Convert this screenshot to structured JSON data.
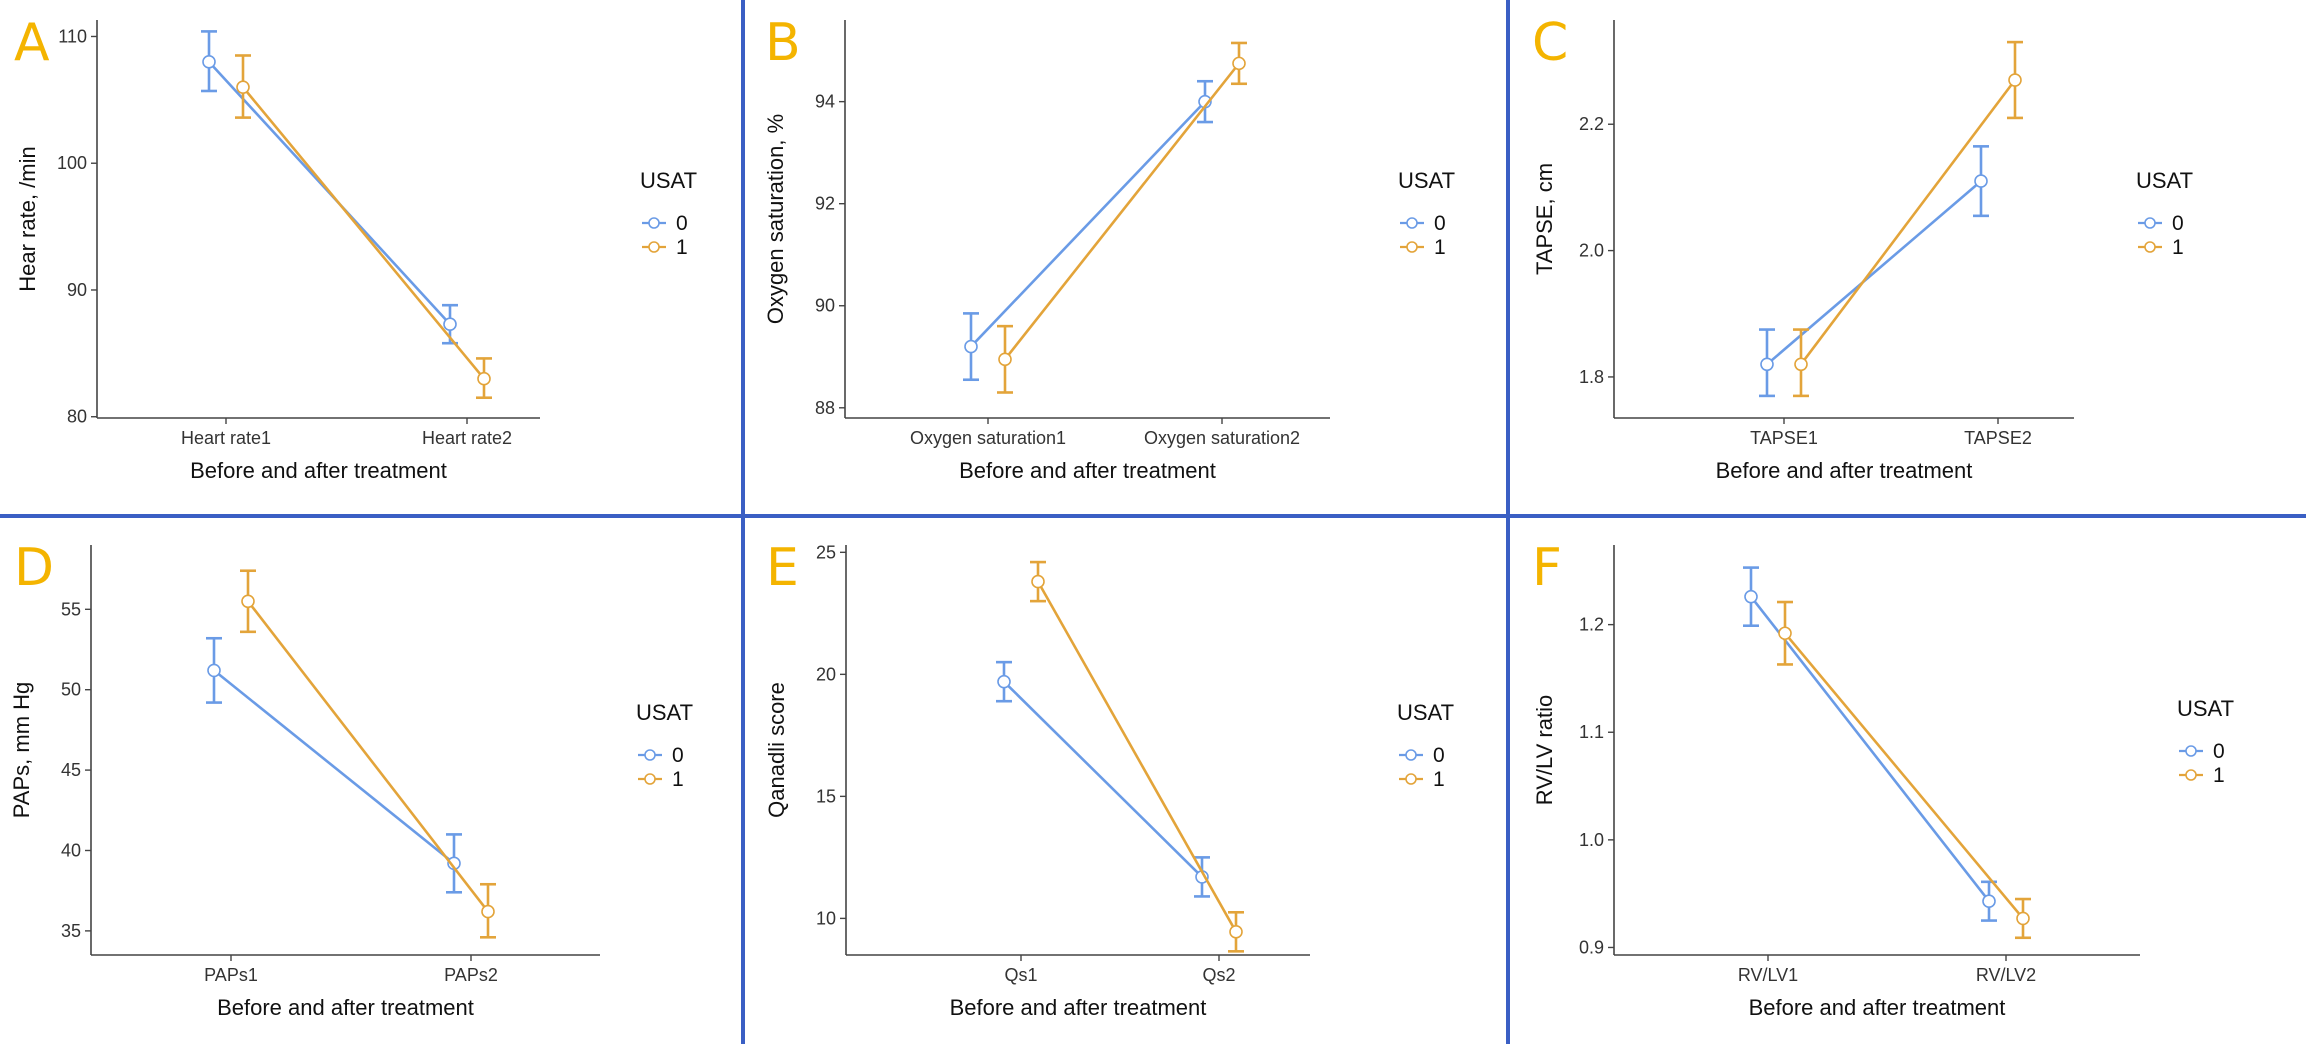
{
  "colors": {
    "group0": "#6a9be6",
    "group1": "#e3a43a",
    "divider": "#3a5fc4",
    "panel_letter": "#f4b400"
  },
  "chart_data": [
    {
      "type": "line",
      "panel": "A",
      "categories": [
        "Heart rate1",
        "Heart rate2"
      ],
      "xlabel": "Before and after treatment",
      "ylabel": "Hear rate, /min",
      "ylim": [
        79.9,
        111.3
      ],
      "yticks": [
        80,
        90,
        100,
        110
      ],
      "legend": {
        "title": "USAT",
        "entries": [
          "0",
          "1"
        ]
      },
      "series": [
        {
          "name": "0",
          "values": [
            108.0,
            87.3
          ],
          "err_low": [
            105.7,
            85.8
          ],
          "err_high": [
            110.4,
            88.8
          ]
        },
        {
          "name": "1",
          "values": [
            106.0,
            83.0
          ],
          "err_low": [
            103.6,
            81.5
          ],
          "err_high": [
            108.5,
            84.6
          ]
        }
      ]
    },
    {
      "type": "line",
      "panel": "B",
      "categories": [
        "Oxygen saturation1",
        "Oxygen saturation2"
      ],
      "xlabel": "Before and after treatment",
      "ylabel": "Oxygen saturation, %",
      "ylim": [
        87.8,
        95.6
      ],
      "yticks": [
        88,
        90,
        92,
        94
      ],
      "legend": {
        "title": "USAT",
        "entries": [
          "0",
          "1"
        ]
      },
      "series": [
        {
          "name": "0",
          "values": [
            89.2,
            94.0
          ],
          "err_low": [
            88.55,
            93.6
          ],
          "err_high": [
            89.85,
            94.4
          ]
        },
        {
          "name": "1",
          "values": [
            88.95,
            94.75
          ],
          "err_low": [
            88.3,
            94.35
          ],
          "err_high": [
            89.6,
            95.15
          ]
        }
      ]
    },
    {
      "type": "line",
      "panel": "C",
      "categories": [
        "TAPSE1",
        "TAPSE2"
      ],
      "xlabel": "Before and after treatment",
      "ylabel": "TAPSE, cm",
      "ylim": [
        1.735,
        2.365
      ],
      "yticks": [
        1.8,
        2.0,
        2.2
      ],
      "ytick_labels": [
        "1.8",
        "2.0",
        "2.2"
      ],
      "legend": {
        "title": "USAT",
        "entries": [
          "0",
          "1"
        ]
      },
      "series": [
        {
          "name": "0",
          "values": [
            1.82,
            2.11
          ],
          "err_low": [
            1.77,
            2.055
          ],
          "err_high": [
            1.875,
            2.165
          ]
        },
        {
          "name": "1",
          "values": [
            1.82,
            2.27
          ],
          "err_low": [
            1.77,
            2.21
          ],
          "err_high": [
            1.875,
            2.33
          ]
        }
      ]
    },
    {
      "type": "line",
      "panel": "D",
      "categories": [
        "PAPs1",
        "PAPs2"
      ],
      "xlabel": "Before and after treatment",
      "ylabel": "PAPs, mm Hg",
      "ylim": [
        33.5,
        59.0
      ],
      "yticks": [
        35,
        40,
        45,
        50,
        55
      ],
      "legend": {
        "title": "USAT",
        "entries": [
          "0",
          "1"
        ]
      },
      "series": [
        {
          "name": "0",
          "values": [
            51.2,
            39.2
          ],
          "err_low": [
            49.2,
            37.4
          ],
          "err_high": [
            53.2,
            41.0
          ]
        },
        {
          "name": "1",
          "values": [
            55.5,
            36.2
          ],
          "err_low": [
            53.6,
            34.6
          ],
          "err_high": [
            57.4,
            37.9
          ]
        }
      ]
    },
    {
      "type": "line",
      "panel": "E",
      "categories": [
        "Qs1",
        "Qs2"
      ],
      "xlabel": "Before and after treatment",
      "ylabel": "Qanadli score",
      "ylim": [
        8.5,
        25.3
      ],
      "yticks": [
        10,
        15,
        20,
        25
      ],
      "legend": {
        "title": "USAT",
        "entries": [
          "0",
          "1"
        ]
      },
      "series": [
        {
          "name": "0",
          "values": [
            19.7,
            11.7
          ],
          "err_low": [
            18.9,
            10.9
          ],
          "err_high": [
            20.5,
            12.5
          ]
        },
        {
          "name": "1",
          "values": [
            23.8,
            9.45
          ],
          "err_low": [
            23.0,
            8.65
          ],
          "err_high": [
            24.6,
            10.25
          ]
        }
      ]
    },
    {
      "type": "line",
      "panel": "F",
      "categories": [
        "RV/LV1",
        "RV/LV2"
      ],
      "xlabel": "Before and after treatment",
      "ylabel": "RV/LV ratio",
      "ylim": [
        0.893,
        1.274
      ],
      "yticks": [
        0.9,
        1.0,
        1.1,
        1.2
      ],
      "ytick_labels": [
        "0.9",
        "1.0",
        "1.1",
        "1.2"
      ],
      "legend": {
        "title": "USAT",
        "entries": [
          "0",
          "1"
        ]
      },
      "series": [
        {
          "name": "0",
          "values": [
            1.226,
            0.943
          ],
          "err_low": [
            1.199,
            0.925
          ],
          "err_high": [
            1.253,
            0.961
          ]
        },
        {
          "name": "1",
          "values": [
            1.192,
            0.927
          ],
          "err_low": [
            1.163,
            0.909
          ],
          "err_high": [
            1.221,
            0.945
          ]
        }
      ]
    }
  ]
}
